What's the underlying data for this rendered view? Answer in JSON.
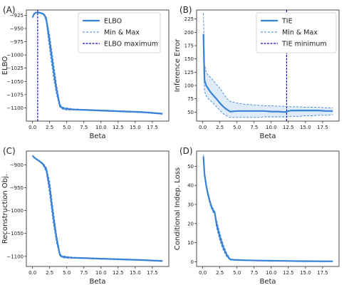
{
  "chart_data": [
    {
      "panel": "(A)",
      "type": "line",
      "xlabel": "Beta",
      "ylabel": "ELBO",
      "xlim": [
        -0.9,
        19.9
      ],
      "ylim": [
        -1125,
        -915
      ],
      "xticks": [
        0.0,
        2.5,
        5.0,
        7.5,
        10.0,
        12.5,
        15.0,
        17.5
      ],
      "yticks": [
        -925,
        -950,
        -975,
        -1000,
        -1025,
        -1050,
        -1075,
        -1100
      ],
      "grid": false,
      "legend_position": "top-right",
      "legend": [
        "ELBO",
        "Min & Max",
        "ELBO maximum"
      ],
      "vline": 0.75,
      "series": [
        {
          "name": "ELBO",
          "style": "solid",
          "x": [
            0,
            0.25,
            0.5,
            0.75,
            1.0,
            1.25,
            1.5,
            1.75,
            2.0,
            2.5,
            3.0,
            3.5,
            4.0,
            4.25,
            4.5,
            5.0,
            6.0,
            8.0,
            10.0,
            12.0,
            14.0,
            16.0,
            19.0
          ],
          "values": [
            -929,
            -922,
            -920,
            -920,
            -920,
            -921,
            -922,
            -925,
            -932,
            -975,
            -1022,
            -1065,
            -1096,
            -1099,
            -1101,
            -1102,
            -1103,
            -1104,
            -1105,
            -1106,
            -1107,
            -1108,
            -1111
          ]
        },
        {
          "name": "Min",
          "style": "dashed",
          "x": [
            0,
            0.25,
            0.5,
            0.75,
            1.0,
            1.25,
            1.5,
            1.75,
            2.0,
            2.5,
            3.0,
            3.5,
            4.0,
            4.25,
            4.5,
            5.0,
            6.0,
            8.0,
            10.0,
            12.0,
            14.0,
            16.0,
            19.0
          ],
          "values": [
            -930,
            -923,
            -921,
            -921,
            -921,
            -922,
            -923,
            -927,
            -937,
            -990,
            -1038,
            -1075,
            -1099,
            -1101,
            -1103,
            -1104,
            -1104,
            -1105,
            -1106,
            -1107,
            -1108,
            -1109,
            -1112
          ]
        },
        {
          "name": "Max",
          "style": "dashed",
          "x": [
            0,
            0.25,
            0.5,
            0.75,
            1.0,
            1.25,
            1.5,
            1.75,
            2.0,
            2.5,
            3.0,
            3.5,
            4.0,
            4.25,
            4.5,
            5.0,
            6.0,
            8.0,
            10.0,
            12.0,
            14.0,
            16.0,
            19.0
          ],
          "values": [
            -928,
            -921,
            -919,
            -919,
            -919,
            -920,
            -921,
            -923,
            -928,
            -962,
            -1008,
            -1055,
            -1093,
            -1097,
            -1099,
            -1100,
            -1102,
            -1103,
            -1104,
            -1105,
            -1106,
            -1107,
            -1110
          ]
        }
      ]
    },
    {
      "panel": "(B)",
      "type": "line",
      "xlabel": "Beta",
      "ylabel": "Inference Error",
      "xlim": [
        -0.9,
        19.9
      ],
      "ylim": [
        33,
        242
      ],
      "xticks": [
        0.0,
        2.5,
        5.0,
        7.5,
        10.0,
        12.5,
        15.0,
        17.5
      ],
      "yticks": [
        50,
        75,
        100,
        125,
        150,
        175,
        200,
        225
      ],
      "grid": false,
      "legend_position": "top-right",
      "legend": [
        "TIE",
        "Min & Max",
        "TIE minimum"
      ],
      "vline": 12.25,
      "series": [
        {
          "name": "TIE",
          "style": "solid",
          "x": [
            0.1,
            0.25,
            0.5,
            0.75,
            1.0,
            1.5,
            2.0,
            2.5,
            3.0,
            3.5,
            4.0,
            5.0,
            6.0,
            7.0,
            8.0,
            9.0,
            10.0,
            11.0,
            12.0,
            12.5,
            13.0,
            14.0,
            15.0,
            16.0,
            17.0,
            18.0,
            19.0
          ],
          "values": [
            197,
            110,
            100,
            95,
            90,
            82,
            75,
            67,
            60,
            55,
            51,
            52,
            52,
            52,
            52,
            52,
            51,
            51,
            50,
            52,
            53,
            53,
            53,
            53,
            53,
            52,
            52
          ]
        },
        {
          "name": "Min",
          "style": "dashed",
          "x": [
            0.1,
            0.25,
            0.5,
            0.75,
            1.0,
            1.5,
            2.0,
            2.5,
            3.0,
            3.5,
            4.0,
            5.0,
            6.0,
            7.0,
            8.0,
            9.0,
            10.0,
            11.0,
            12.0,
            12.5,
            13.0,
            14.0,
            15.0,
            16.0,
            17.0,
            18.0,
            19.0
          ],
          "values": [
            155,
            90,
            80,
            76,
            73,
            67,
            60,
            53,
            47,
            43,
            40,
            40,
            40,
            40,
            40,
            41,
            41,
            41,
            41,
            42,
            42,
            42,
            43,
            43,
            44,
            44,
            45
          ]
        },
        {
          "name": "Max",
          "style": "dashed",
          "x": [
            0.1,
            0.25,
            0.5,
            0.75,
            1.0,
            1.5,
            2.0,
            2.5,
            3.0,
            3.5,
            4.0,
            5.0,
            6.0,
            7.0,
            8.0,
            9.0,
            10.0,
            11.0,
            12.0,
            12.5,
            13.0,
            14.0,
            15.0,
            16.0,
            17.0,
            18.0,
            19.0
          ],
          "values": [
            236,
            140,
            125,
            120,
            117,
            110,
            102,
            95,
            85,
            76,
            70,
            67,
            65,
            64,
            63,
            62,
            62,
            61,
            61,
            60,
            60,
            60,
            59,
            59,
            59,
            58,
            58
          ]
        }
      ]
    },
    {
      "panel": "(C)",
      "type": "line",
      "xlabel": "Beta",
      "ylabel": "Reconstruction Obj.",
      "xlim": [
        -0.9,
        19.9
      ],
      "ylim": [
        -1122,
        -870
      ],
      "xticks": [
        0.0,
        2.5,
        5.0,
        7.5,
        10.0,
        12.5,
        15.0,
        17.5
      ],
      "yticks": [
        -900,
        -950,
        -1000,
        -1050,
        -1100
      ],
      "grid": false,
      "series": [
        {
          "name": "Reconstruction Obj.",
          "style": "solid",
          "x": [
            0,
            0.25,
            0.5,
            1.0,
            1.5,
            2.0,
            2.5,
            3.0,
            3.5,
            4.0,
            4.25,
            4.5,
            5.0,
            6.0,
            8.0,
            10.0,
            12.0,
            14.0,
            16.0,
            19.0
          ],
          "values": [
            -880,
            -884,
            -887,
            -892,
            -898,
            -910,
            -950,
            -1010,
            -1060,
            -1097,
            -1100,
            -1101,
            -1102,
            -1103,
            -1104,
            -1105,
            -1106,
            -1107,
            -1108,
            -1110
          ]
        },
        {
          "name": "Min",
          "style": "dashed",
          "x": [
            0,
            0.25,
            0.5,
            1.0,
            1.5,
            2.0,
            2.5,
            3.0,
            3.5,
            4.0,
            4.25,
            4.5,
            5.0,
            6.0,
            8.0,
            10.0,
            12.0,
            14.0,
            16.0,
            19.0
          ],
          "values": [
            -881,
            -885,
            -888,
            -893,
            -900,
            -915,
            -965,
            -1025,
            -1070,
            -1099,
            -1102,
            -1103,
            -1104,
            -1104,
            -1105,
            -1106,
            -1107,
            -1108,
            -1109,
            -1111
          ]
        },
        {
          "name": "Max",
          "style": "dashed",
          "x": [
            0,
            0.25,
            0.5,
            1.0,
            1.5,
            2.0,
            2.5,
            3.0,
            3.5,
            4.0,
            4.25,
            4.5,
            5.0,
            6.0,
            8.0,
            10.0,
            12.0,
            14.0,
            16.0,
            19.0
          ],
          "values": [
            -879,
            -883,
            -886,
            -891,
            -896,
            -905,
            -935,
            -995,
            -1050,
            -1094,
            -1098,
            -1099,
            -1100,
            -1102,
            -1103,
            -1104,
            -1105,
            -1106,
            -1107,
            -1109
          ]
        }
      ]
    },
    {
      "panel": "(D)",
      "type": "line",
      "xlabel": "Beta",
      "ylabel": "Conditional Indep. Loss",
      "xlim": [
        -0.9,
        19.9
      ],
      "ylim": [
        -2.5,
        58
      ],
      "xticks": [
        0.0,
        2.5,
        5.0,
        7.5,
        10.0,
        12.5,
        15.0,
        17.5
      ],
      "yticks": [
        0,
        10,
        20,
        30,
        40,
        50
      ],
      "grid": false,
      "series": [
        {
          "name": "Conditional Indep. Loss",
          "style": "solid",
          "x": [
            0.1,
            0.25,
            0.5,
            0.75,
            1.0,
            1.25,
            1.5,
            1.75,
            2.0,
            2.5,
            3.0,
            3.5,
            4.0,
            4.5,
            5.0,
            6.0,
            8.0,
            10.0,
            12.0,
            14.0,
            16.0,
            19.0
          ],
          "values": [
            55,
            46,
            40,
            35.5,
            32,
            29,
            27,
            25.5,
            20,
            13,
            7.5,
            3.5,
            1.2,
            1.0,
            0.9,
            0.8,
            0.6,
            0.5,
            0.4,
            0.3,
            0.25,
            0.2
          ]
        },
        {
          "name": "Min",
          "style": "dashed",
          "x": [
            0.1,
            0.25,
            0.5,
            0.75,
            1.0,
            1.25,
            1.5,
            1.75,
            2.0,
            2.5,
            3.0,
            3.5,
            4.0,
            4.5,
            5.0,
            6.0,
            8.0,
            10.0,
            12.0,
            14.0,
            16.0,
            19.0
          ],
          "values": [
            54,
            45,
            39,
            34.5,
            31,
            28,
            26,
            24.5,
            18,
            11,
            6,
            2.5,
            0.9,
            0.8,
            0.7,
            0.6,
            0.5,
            0.4,
            0.3,
            0.2,
            0.2,
            0.1
          ]
        },
        {
          "name": "Max",
          "style": "dashed",
          "x": [
            0.1,
            0.25,
            0.5,
            0.75,
            1.0,
            1.25,
            1.5,
            1.75,
            2.0,
            2.5,
            3.0,
            3.5,
            4.0,
            4.5,
            5.0,
            6.0,
            8.0,
            10.0,
            12.0,
            14.0,
            16.0,
            19.0
          ],
          "values": [
            56,
            47,
            41,
            36.5,
            33,
            30,
            28,
            26.5,
            22,
            15,
            9,
            4.5,
            1.5,
            1.2,
            1.1,
            1.0,
            0.8,
            0.6,
            0.5,
            0.4,
            0.3,
            0.3
          ]
        }
      ]
    }
  ],
  "colors": {
    "line": "#3a82d6",
    "vline": "#1010b0",
    "band": "#d8e6f6",
    "axis": "#222222"
  }
}
